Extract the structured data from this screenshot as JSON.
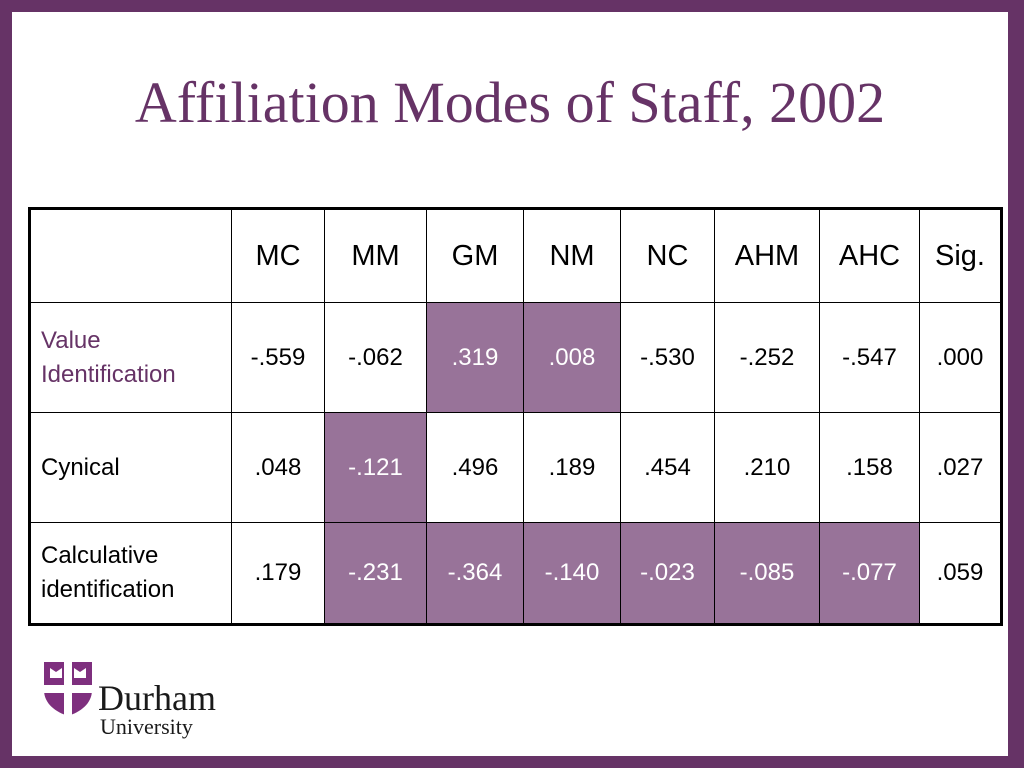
{
  "slide": {
    "title": "Affiliation Modes of Staff, 2002",
    "highlight_color": "#987399",
    "accent_color": "#663366"
  },
  "table": {
    "columns": [
      "",
      "MC",
      "MM",
      "GM",
      "NM",
      "NC",
      "AHM",
      "AHC",
      "Sig."
    ],
    "rows": [
      {
        "label": "Value Identification",
        "values": [
          "-.559",
          "-.062",
          ".319",
          ".008",
          "-.530",
          "-.252",
          "-.547",
          ".000"
        ],
        "highlighted": [
          false,
          false,
          true,
          true,
          false,
          false,
          false,
          false
        ]
      },
      {
        "label": "Cynical",
        "values": [
          ".048",
          "-.121",
          ".496",
          ".189",
          ".454",
          ".210",
          ".158",
          ".027"
        ],
        "highlighted": [
          false,
          true,
          false,
          false,
          false,
          false,
          false,
          false
        ]
      },
      {
        "label": "Calculative identification",
        "values": [
          ".179",
          "-.231",
          "-.364",
          "-.140",
          "-.023",
          "-.085",
          "-.077",
          ".059"
        ],
        "highlighted": [
          false,
          true,
          true,
          true,
          true,
          true,
          true,
          false
        ]
      }
    ]
  },
  "logo": {
    "name": "Durham",
    "subtitle": "University",
    "crest": "durham-crest-icon"
  }
}
